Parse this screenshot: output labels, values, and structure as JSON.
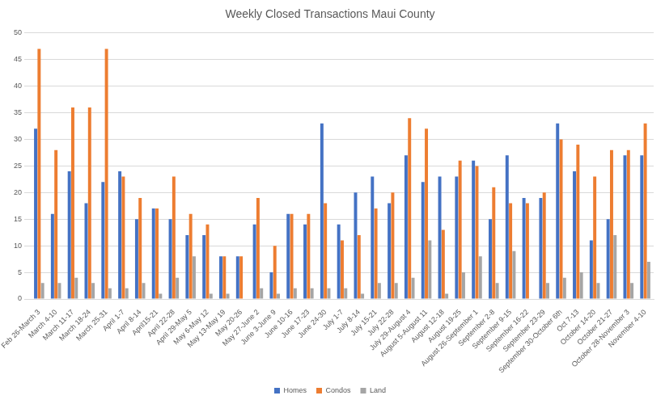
{
  "chart_data": {
    "type": "bar",
    "title": "Weekly Closed Transactions Maui County",
    "categories": [
      "Feb 26-March 3",
      "March 4-10",
      "March 11-17",
      "March 18-24",
      "March 25-31",
      "April 1-7",
      "April 8-14",
      "April15-21",
      "April 22-28",
      "April 29-May 5",
      "May 6-May 12",
      "May 13-May 19",
      "May 20-26",
      "May 27-June 2",
      "June 3-June 9",
      "June 10-16",
      "June 17-23",
      "June 24-30",
      "July 1-7",
      "July 8-14",
      "July 15-21",
      "July 22-28",
      "July 29-August 4",
      "August 5-August 11",
      "August 12-18",
      "August 19-25",
      "August 26-September 1",
      "September 2-8",
      "September 9-15",
      "September 16-22",
      "September 23-29",
      "September 30-October 6th",
      "Oct 7-13",
      "October 14-20",
      "October 21-27",
      "October 28-November 3",
      "November 4-10"
    ],
    "series": [
      {
        "name": "Homes",
        "color": "#4472c4",
        "values": [
          32,
          16,
          24,
          18,
          22,
          24,
          15,
          17,
          15,
          12,
          12,
          8,
          8,
          14,
          5,
          16,
          14,
          33,
          14,
          20,
          23,
          18,
          27,
          22,
          23,
          23,
          26,
          15,
          27,
          19,
          19,
          33,
          24,
          11,
          15,
          27,
          27
        ]
      },
      {
        "name": "Condos",
        "color": "#ed7d31",
        "values": [
          47,
          28,
          36,
          36,
          47,
          23,
          19,
          17,
          23,
          16,
          14,
          8,
          8,
          19,
          10,
          16,
          16,
          18,
          11,
          12,
          17,
          20,
          34,
          32,
          13,
          26,
          25,
          21,
          18,
          18,
          20,
          30,
          29,
          23,
          28,
          28,
          33
        ]
      },
      {
        "name": "Land",
        "color": "#a5a5a5",
        "values": [
          3,
          3,
          4,
          3,
          2,
          2,
          3,
          1,
          4,
          8,
          1,
          1,
          0,
          2,
          1,
          2,
          2,
          2,
          2,
          1,
          3,
          3,
          4,
          11,
          1,
          5,
          8,
          3,
          9,
          0,
          3,
          4,
          5,
          3,
          12,
          3,
          7
        ]
      }
    ],
    "ylim": [
      0,
      50
    ],
    "yticks": [
      0,
      5,
      10,
      15,
      20,
      25,
      30,
      35,
      40,
      45,
      50
    ],
    "grid": true,
    "legend": "bottom"
  }
}
